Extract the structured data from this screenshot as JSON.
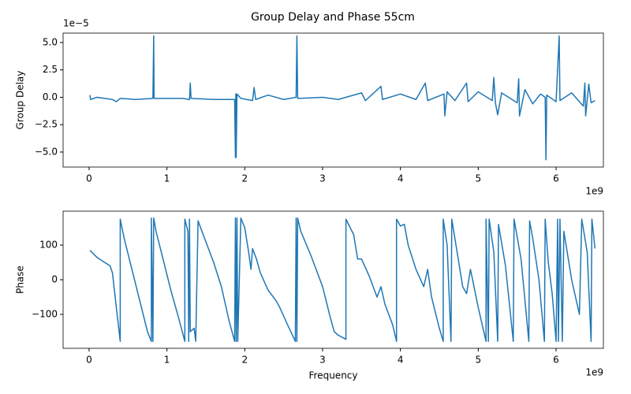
{
  "title": "Group Delay and Phase 55cm",
  "chart_data": [
    {
      "type": "line",
      "ylabel": "Group Delay",
      "x_offset_text": "1e9",
      "y_offset_text": "1e−5",
      "x": [
        0.01,
        0.02,
        0.1,
        0.2,
        0.3,
        0.35,
        0.4,
        0.6,
        0.82,
        0.83,
        0.835,
        1.0,
        1.2,
        1.29,
        1.3,
        1.31,
        1.6,
        1.87,
        1.88,
        1.885,
        1.89,
        1.9,
        1.95,
        2.1,
        2.12,
        2.14,
        2.3,
        2.5,
        2.66,
        2.67,
        2.68,
        3.0,
        3.2,
        3.5,
        3.55,
        3.75,
        3.77,
        4.0,
        4.2,
        4.32,
        4.35,
        4.56,
        4.57,
        4.6,
        4.7,
        4.85,
        4.87,
        5.0,
        5.18,
        5.2,
        5.22,
        5.25,
        5.3,
        5.5,
        5.52,
        5.53,
        5.6,
        5.7,
        5.8,
        5.86,
        5.87,
        5.88,
        6.0,
        6.04,
        6.05,
        6.2,
        6.35,
        6.37,
        6.38,
        6.42,
        6.45,
        6.5
      ],
      "series": [
        {
          "color": "#1f77b4",
          "values": [
            0.2,
            -0.2,
            0,
            -0.1,
            -0.2,
            -0.4,
            -0.1,
            -0.2,
            -0.1,
            5.6,
            -0.1,
            -0.1,
            -0.1,
            -0.2,
            1.3,
            -0.1,
            -0.2,
            -0.2,
            -5.5,
            0.3,
            -5.5,
            0.3,
            -0.1,
            -0.3,
            0.9,
            -0.2,
            0.2,
            -0.2,
            0,
            5.6,
            -0.1,
            0,
            -0.2,
            0.4,
            -0.3,
            1.0,
            -0.2,
            0.3,
            -0.2,
            1.3,
            -0.3,
            0.3,
            -1.7,
            0.5,
            -0.3,
            1.3,
            -0.4,
            0.5,
            -0.3,
            1.8,
            -0.5,
            -1.6,
            0.4,
            -0.5,
            1.7,
            -1.7,
            0.7,
            -0.6,
            0.3,
            0,
            -5.7,
            0.2,
            -0.4,
            5.6,
            -0.3,
            0.4,
            -0.8,
            1.3,
            -1.7,
            1.2,
            -0.5,
            -0.3
          ]
        }
      ],
      "xlim": [
        -0.334,
        6.608
      ],
      "xticks": [
        0,
        1,
        2,
        3,
        4,
        5,
        6
      ],
      "ylim": [
        -6.37,
        5.86
      ],
      "yticks": [
        {
          "value": 5,
          "label": "5.0"
        },
        {
          "value": 2.5,
          "label": "2.5"
        },
        {
          "value": 0,
          "label": "0.0"
        },
        {
          "value": -2.5,
          "label": "−2.5"
        },
        {
          "value": -5,
          "label": "−5.0"
        }
      ]
    },
    {
      "type": "line",
      "ylabel": "Phase",
      "xlabel": "Frequency",
      "x_offset_text": "1e9",
      "x": [
        0.01,
        0.1,
        0.2,
        0.27,
        0.3,
        0.35,
        0.4,
        0.4,
        0.45,
        0.55,
        0.65,
        0.75,
        0.8,
        0.8,
        0.82,
        0.83,
        0.86,
        0.95,
        1.05,
        1.15,
        1.23,
        1.23,
        1.27,
        1.28,
        1.29,
        1.3,
        1.35,
        1.37,
        1.4,
        1.5,
        1.6,
        1.7,
        1.8,
        1.87,
        1.88,
        1.89,
        1.9,
        1.91,
        1.95,
        2.0,
        2.05,
        2.08,
        2.1,
        2.15,
        2.2,
        2.3,
        2.4,
        2.45,
        2.55,
        2.65,
        2.66,
        2.67,
        2.68,
        2.72,
        2.85,
        3.0,
        3.1,
        3.15,
        3.2,
        3.3,
        3.3,
        3.4,
        3.45,
        3.5,
        3.6,
        3.7,
        3.75,
        3.8,
        3.9,
        3.95,
        3.95,
        4.0,
        4.05,
        4.1,
        4.2,
        4.3,
        4.35,
        4.4,
        4.5,
        4.55,
        4.55,
        4.6,
        4.65,
        4.66,
        4.75,
        4.8,
        4.85,
        4.9,
        5.0,
        5.1,
        5.1,
        5.13,
        5.14,
        5.2,
        5.25,
        5.26,
        5.35,
        5.45,
        5.46,
        5.55,
        5.65,
        5.66,
        5.7,
        5.78,
        5.85,
        5.86,
        5.9,
        5.95,
        6.0,
        6.02,
        6.03,
        6.05,
        6.08,
        6.1,
        6.2,
        6.3,
        6.33,
        6.4,
        6.45,
        6.46,
        6.5
      ],
      "series": [
        {
          "color": "#1f77b4",
          "values": [
            85,
            65,
            50,
            40,
            20,
            -80,
            -178,
            175,
            120,
            30,
            -60,
            -150,
            -178,
            178,
            -178,
            178,
            140,
            60,
            -30,
            -110,
            -178,
            175,
            140,
            -178,
            175,
            -150,
            -140,
            -178,
            170,
            110,
            50,
            -20,
            -120,
            -178,
            178,
            -178,
            178,
            -178,
            178,
            150,
            80,
            30,
            90,
            60,
            20,
            -30,
            -60,
            -80,
            -130,
            -178,
            178,
            -178,
            178,
            140,
            70,
            -20,
            -110,
            -150,
            -160,
            -172,
            175,
            130,
            60,
            60,
            10,
            -50,
            -20,
            -70,
            -130,
            -178,
            175,
            155,
            160,
            100,
            30,
            -20,
            30,
            -50,
            -140,
            -178,
            175,
            100,
            -178,
            175,
            50,
            -20,
            -40,
            30,
            -80,
            -178,
            175,
            -178,
            175,
            80,
            -178,
            160,
            40,
            -178,
            175,
            60,
            -178,
            170,
            120,
            0,
            -178,
            175,
            50,
            -40,
            -178,
            175,
            -178,
            175,
            -178,
            140,
            0,
            -100,
            175,
            80,
            -178,
            175,
            90
          ]
        }
      ],
      "xlim": [
        -0.334,
        6.608
      ],
      "xticks": [
        0,
        1,
        2,
        3,
        4,
        5,
        6
      ],
      "ylim": [
        -198,
        198
      ],
      "yticks": [
        100,
        0,
        {
          "value": -100,
          "label": "−100"
        }
      ]
    }
  ]
}
